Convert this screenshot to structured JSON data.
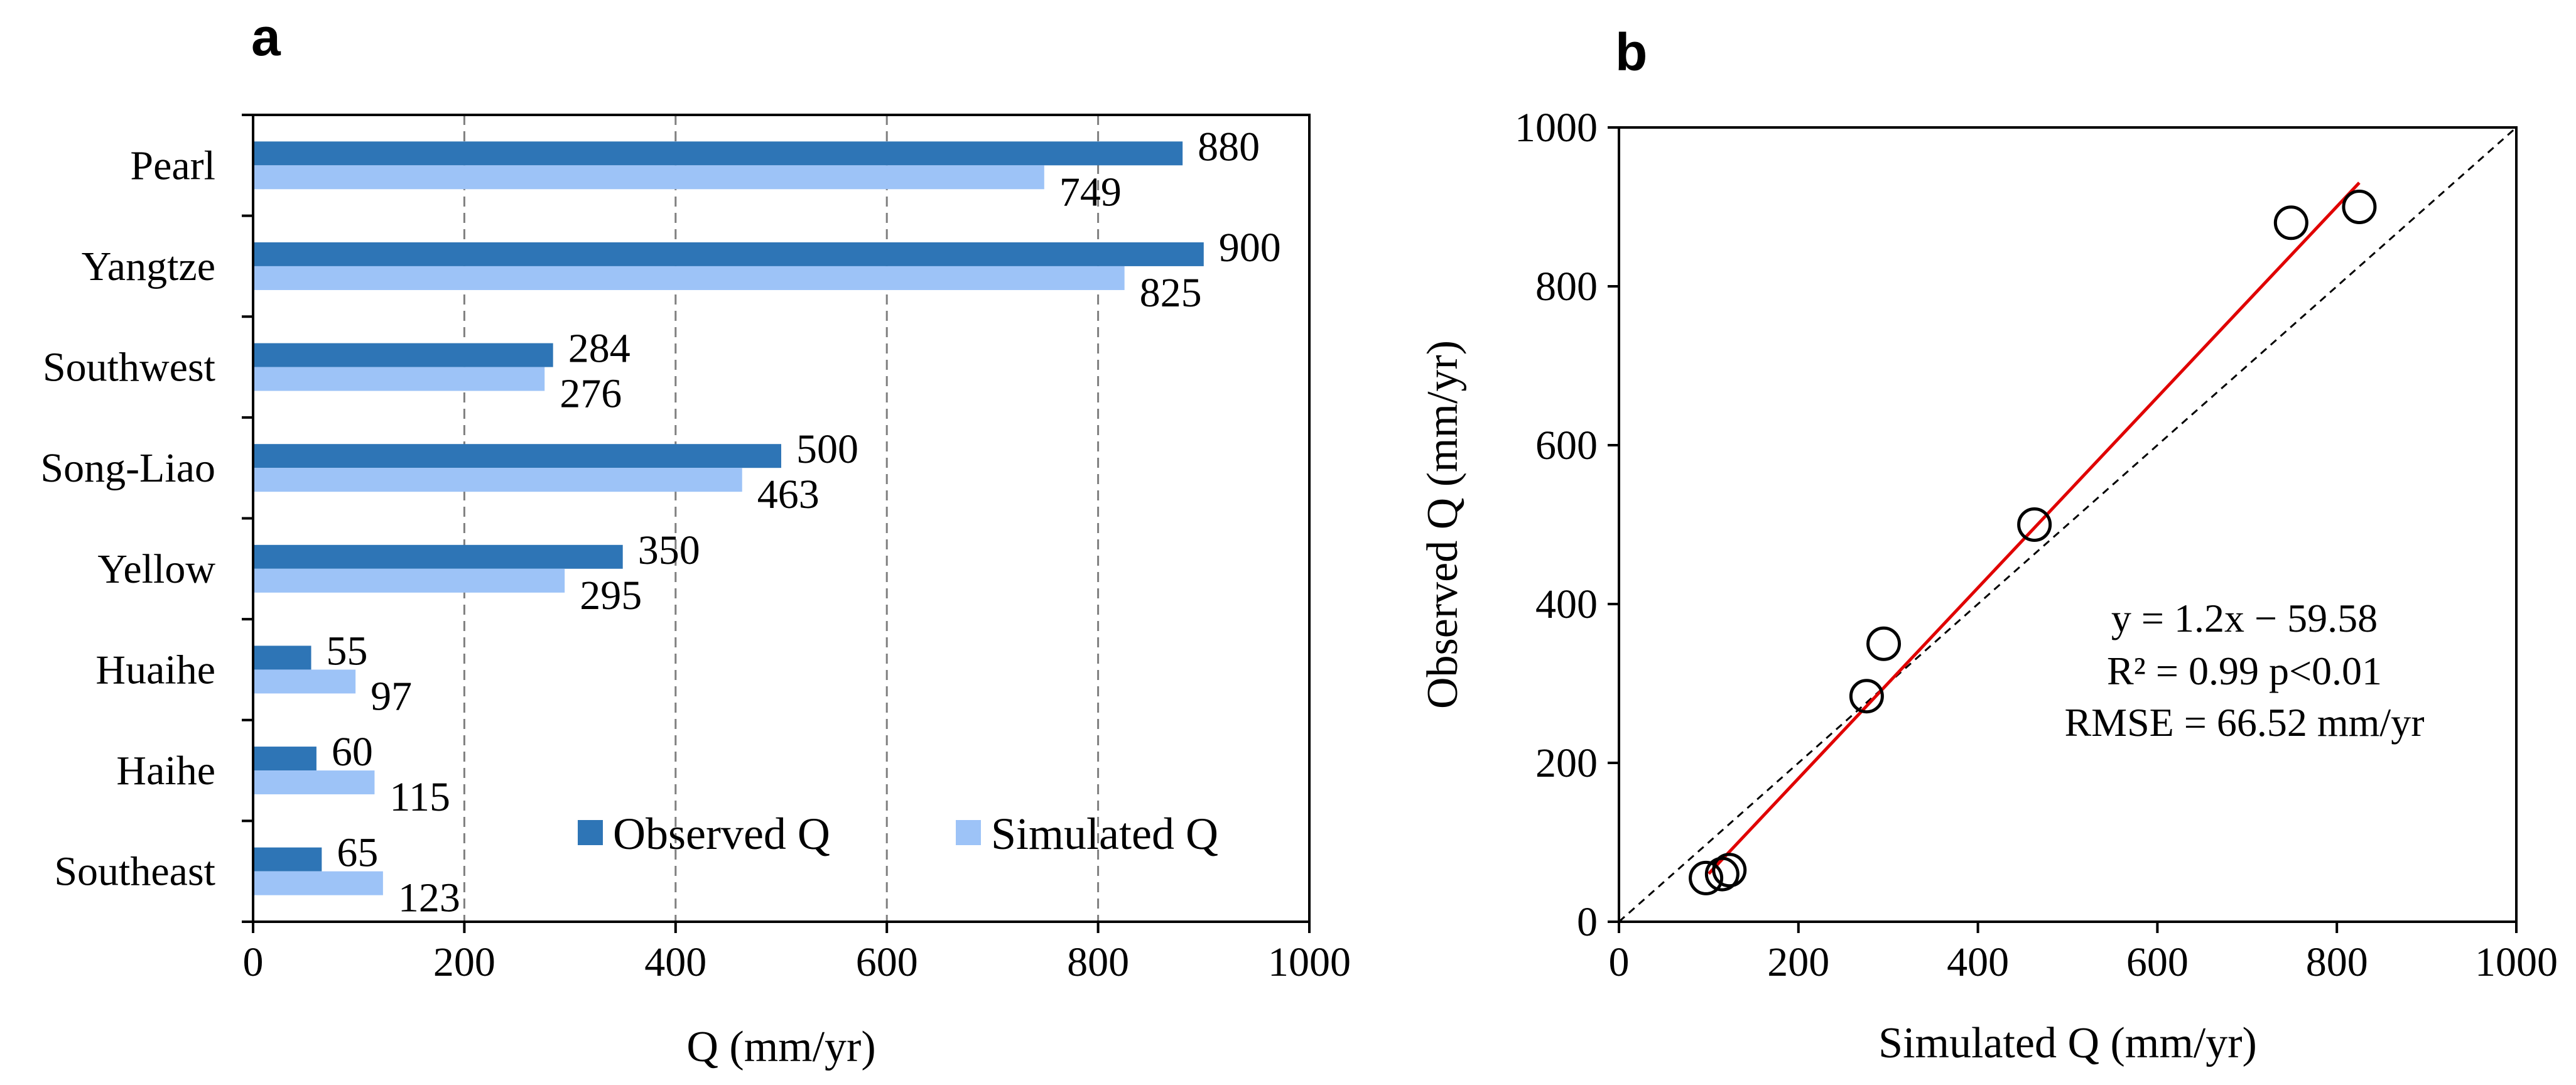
{
  "panels": {
    "a_label": "a",
    "b_label": "b"
  },
  "chart_data": [
    {
      "type": "bar",
      "orientation": "horizontal",
      "panel": "a",
      "categories": [
        "Pearl",
        "Yangtze",
        "Southwest",
        "Song-Liao",
        "Yellow",
        "Huaihe",
        "Haihe",
        "Southeast"
      ],
      "series": [
        {
          "name": "Observed Q",
          "color": "#2E75B6",
          "values": [
            880,
            900,
            284,
            500,
            350,
            55,
            60,
            65
          ]
        },
        {
          "name": "Simulated Q",
          "color": "#9DC3F7",
          "values": [
            749,
            825,
            276,
            463,
            295,
            97,
            115,
            123
          ]
        }
      ],
      "xlabel": "Q (mm/yr)",
      "xlim": [
        0,
        1000
      ],
      "xticks": [
        0,
        200,
        400,
        600,
        800,
        1000
      ],
      "grid": "vertical dashed",
      "legend_position": "bottom-right"
    },
    {
      "type": "scatter",
      "panel": "b",
      "points": [
        {
          "x": 749,
          "y": 880
        },
        {
          "x": 825,
          "y": 900
        },
        {
          "x": 276,
          "y": 284
        },
        {
          "x": 463,
          "y": 500
        },
        {
          "x": 295,
          "y": 350
        },
        {
          "x": 97,
          "y": 55
        },
        {
          "x": 115,
          "y": 60
        },
        {
          "x": 123,
          "y": 65
        }
      ],
      "xlabel": "Simulated Q (mm/yr)",
      "ylabel": "Observed Q (mm/yr)",
      "xlim": [
        0,
        1000
      ],
      "ylim": [
        0,
        1000
      ],
      "xticks": [
        0,
        200,
        400,
        600,
        800,
        1000
      ],
      "yticks": [
        0,
        200,
        400,
        600,
        800,
        1000
      ],
      "fit_line": {
        "slope": 1.2,
        "intercept": -59.58,
        "x_range": [
          100,
          825
        ],
        "color": "#E00000"
      },
      "one_to_one_line": true,
      "annotations": [
        "y = 1.2x − 59.58",
        "R² = 0.99  p<0.01",
        "RMSE = 66.52 mm/yr"
      ]
    }
  ]
}
